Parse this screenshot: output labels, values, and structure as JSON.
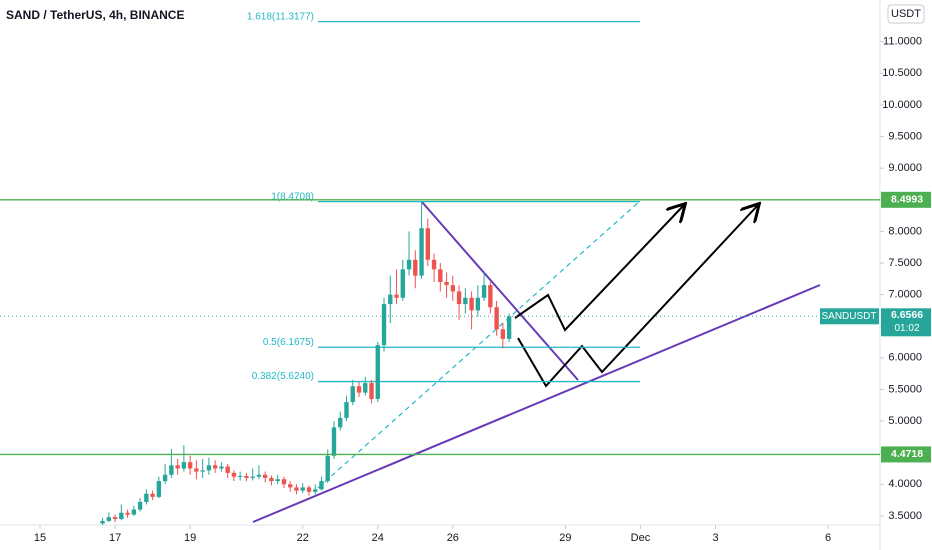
{
  "chart_data": {
    "type": "candlestick",
    "title": "SAND / TetherUS, 4h, BINANCE",
    "currency": "USDT",
    "up_color": "#26a69a",
    "down_color": "#ef5350",
    "grid": false,
    "x": [
      10,
      11,
      12,
      13,
      14,
      15,
      16,
      17,
      18,
      19,
      20,
      21,
      22,
      23,
      24,
      25,
      26,
      27,
      28,
      29,
      30,
      31,
      32,
      33,
      34,
      35,
      36,
      37,
      38,
      39,
      40,
      41,
      42,
      43,
      44,
      45,
      46,
      47,
      48,
      49,
      50,
      51,
      52,
      53,
      54,
      55,
      56,
      57,
      58,
      59,
      60,
      61,
      62,
      63,
      64,
      65,
      66,
      67,
      68,
      69,
      70,
      71,
      72,
      73,
      74,
      75
    ],
    "open": [
      3.38,
      3.42,
      3.48,
      3.45,
      3.55,
      3.52,
      3.6,
      3.72,
      3.85,
      3.8,
      4.05,
      4.15,
      4.3,
      4.25,
      4.35,
      4.25,
      4.2,
      4.22,
      4.3,
      4.25,
      4.28,
      4.18,
      4.12,
      4.13,
      4.1,
      4.12,
      4.15,
      4.1,
      4.05,
      4.08,
      4.0,
      3.95,
      3.9,
      3.95,
      3.88,
      3.92,
      4.05,
      4.45,
      4.9,
      5.05,
      5.3,
      5.55,
      5.45,
      5.6,
      5.35,
      6.2,
      6.85,
      7.0,
      6.95,
      7.4,
      7.55,
      7.3,
      8.05,
      7.55,
      7.4,
      7.2,
      7.15,
      7.05,
      6.85,
      6.95,
      6.75,
      6.95,
      7.15,
      6.8,
      6.45,
      6.3
    ],
    "high": [
      3.47,
      3.55,
      3.52,
      3.68,
      3.6,
      3.66,
      3.78,
      3.92,
      3.9,
      4.12,
      4.32,
      4.56,
      4.4,
      4.62,
      4.45,
      4.38,
      4.4,
      4.42,
      4.38,
      4.35,
      4.32,
      4.22,
      4.2,
      4.18,
      4.25,
      4.3,
      4.2,
      4.14,
      4.15,
      4.12,
      4.05,
      4.0,
      4.02,
      3.98,
      4.0,
      4.12,
      4.55,
      5.0,
      5.15,
      5.4,
      5.65,
      5.62,
      5.7,
      5.65,
      6.25,
      6.95,
      7.3,
      7.4,
      7.55,
      8.0,
      7.7,
      8.47,
      8.2,
      7.65,
      7.5,
      7.35,
      7.3,
      7.15,
      7.1,
      7.05,
      7.15,
      7.35,
      7.2,
      6.9,
      6.55,
      6.7
    ],
    "low": [
      3.34,
      3.4,
      3.4,
      3.43,
      3.47,
      3.5,
      3.57,
      3.68,
      3.75,
      3.78,
      4.0,
      4.1,
      4.15,
      4.2,
      4.15,
      4.08,
      4.1,
      4.15,
      4.18,
      4.2,
      4.1,
      4.05,
      4.06,
      4.05,
      4.06,
      4.08,
      4.03,
      3.98,
      4.0,
      3.94,
      3.88,
      3.84,
      3.86,
      3.82,
      3.84,
      3.9,
      4.02,
      4.4,
      4.85,
      5.0,
      5.25,
      5.38,
      5.4,
      5.28,
      5.3,
      6.1,
      6.55,
      6.85,
      6.9,
      7.3,
      7.1,
      7.25,
      7.45,
      7.2,
      7.05,
      6.95,
      6.9,
      6.6,
      6.7,
      6.45,
      6.65,
      6.9,
      6.7,
      6.35,
      6.15,
      6.25
    ],
    "close": [
      3.42,
      3.48,
      3.45,
      3.55,
      3.52,
      3.6,
      3.72,
      3.85,
      3.8,
      4.05,
      4.15,
      4.3,
      4.25,
      4.35,
      4.25,
      4.2,
      4.22,
      4.3,
      4.25,
      4.28,
      4.18,
      4.12,
      4.13,
      4.1,
      4.12,
      4.15,
      4.1,
      4.05,
      4.08,
      4.0,
      3.95,
      3.9,
      3.95,
      3.88,
      3.92,
      4.05,
      4.45,
      4.9,
      5.05,
      5.3,
      5.55,
      5.45,
      5.6,
      5.35,
      6.2,
      6.85,
      7.0,
      6.95,
      7.4,
      7.55,
      7.3,
      8.05,
      7.55,
      7.4,
      7.2,
      7.15,
      7.05,
      6.85,
      6.95,
      6.75,
      6.95,
      7.15,
      6.8,
      6.45,
      6.3,
      6.6566
    ],
    "xlim": [
      -6.4,
      134.3
    ],
    "xticks": [
      {
        "value": 0,
        "label": "15"
      },
      {
        "value": 12,
        "label": "17"
      },
      {
        "value": 24,
        "label": "19"
      },
      {
        "value": 42,
        "label": "22"
      },
      {
        "value": 54,
        "label": "24"
      },
      {
        "value": 66,
        "label": "26"
      },
      {
        "value": 84,
        "label": "29"
      },
      {
        "value": 96,
        "label": "Dec"
      },
      {
        "value": 108,
        "label": "3"
      },
      {
        "value": 126,
        "label": "6"
      }
    ],
    "ylim": [
      2.96,
      11.66
    ],
    "yticks": [
      {
        "value": 3.5,
        "label": "3.5000"
      },
      {
        "value": 4,
        "label": "4.0000"
      },
      {
        "value": 4.5,
        "label": "4.5000"
      },
      {
        "value": 5,
        "label": "5.0000"
      },
      {
        "value": 5.5,
        "label": "5.5000"
      },
      {
        "value": 6,
        "label": "6.0000"
      },
      {
        "value": 6.5,
        "label": "6.5000"
      },
      {
        "value": 7,
        "label": "7.0000"
      },
      {
        "value": 7.5,
        "label": "7.5000"
      },
      {
        "value": 8,
        "label": "8.0000"
      },
      {
        "value": 8.5,
        "label": "8.5000"
      },
      {
        "value": 9,
        "label": "9.0000"
      },
      {
        "value": 9.5,
        "label": "9.5000"
      },
      {
        "value": 10,
        "label": "10.0000"
      },
      {
        "value": 10.5,
        "label": "10.5000"
      },
      {
        "value": 11,
        "label": "11.0000"
      }
    ],
    "fib_color": "#22b8c8",
    "fib_levels": [
      {
        "value": 11.3177,
        "label": "1.618(11.3177)"
      },
      {
        "value": 8.4708,
        "label": "1(8.4708)"
      },
      {
        "value": 6.1675,
        "label": "0.5(6.1675)"
      },
      {
        "value": 5.624,
        "label": "0.382(5.6240)"
      }
    ],
    "line_color": "#4caf50",
    "horizontal_lines": [
      8.4993,
      4.4718
    ],
    "last_price": {
      "name": "SANDUSDT",
      "value": 6.6566,
      "countdown": "01:02"
    }
  }
}
